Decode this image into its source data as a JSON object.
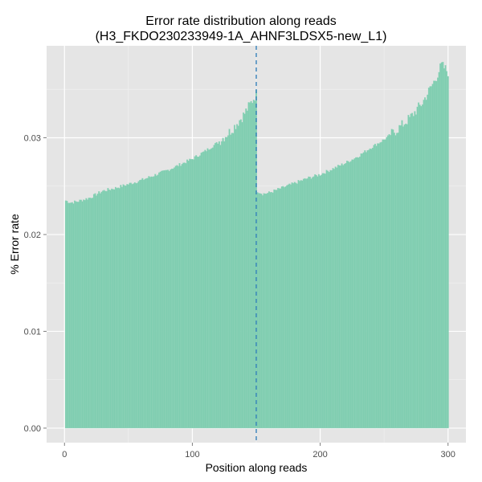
{
  "chart_data": {
    "type": "bar",
    "title_line1": "Error rate distribution along reads",
    "title_line2": "(H3_FKDO230233949-1A_AHNF3LDSX5-new_L1)",
    "xlabel": "Position along reads",
    "ylabel": "% Error rate",
    "xlim": [
      -14,
      314
    ],
    "ylim": [
      -0.0015,
      0.0395
    ],
    "x_ticks": [
      0,
      100,
      200,
      300
    ],
    "y_ticks": [
      0.0,
      0.01,
      0.02,
      0.03
    ],
    "y_tick_labels": [
      "0.00",
      "0.01",
      "0.02",
      "0.03"
    ],
    "divider_x": 150,
    "grid": true,
    "colors": {
      "bar": "#7fcdb0",
      "bar_stroke": "#8ed4b9",
      "panel": "#e5e5e5",
      "grid": "#ffffff",
      "divider": "#2b7bb9"
    },
    "read1_anchors": [
      [
        1,
        0.0235
      ],
      [
        5,
        0.0233
      ],
      [
        10,
        0.0234
      ],
      [
        20,
        0.0238
      ],
      [
        30,
        0.0245
      ],
      [
        40,
        0.0248
      ],
      [
        50,
        0.0252
      ],
      [
        60,
        0.0256
      ],
      [
        70,
        0.0261
      ],
      [
        80,
        0.0266
      ],
      [
        90,
        0.0272
      ],
      [
        100,
        0.0278
      ],
      [
        110,
        0.0286
      ],
      [
        120,
        0.0295
      ],
      [
        130,
        0.0307
      ],
      [
        140,
        0.0323
      ],
      [
        150,
        0.0345
      ]
    ],
    "read2_anchors": [
      [
        151,
        0.0245
      ],
      [
        155,
        0.0242
      ],
      [
        160,
        0.0243
      ],
      [
        170,
        0.0248
      ],
      [
        180,
        0.0253
      ],
      [
        190,
        0.0258
      ],
      [
        200,
        0.0262
      ],
      [
        210,
        0.0268
      ],
      [
        220,
        0.0274
      ],
      [
        230,
        0.0281
      ],
      [
        240,
        0.029
      ],
      [
        250,
        0.0298
      ],
      [
        260,
        0.0308
      ],
      [
        270,
        0.032
      ],
      [
        280,
        0.0336
      ],
      [
        290,
        0.036
      ],
      [
        295,
        0.0375
      ],
      [
        300,
        0.0368
      ]
    ]
  }
}
